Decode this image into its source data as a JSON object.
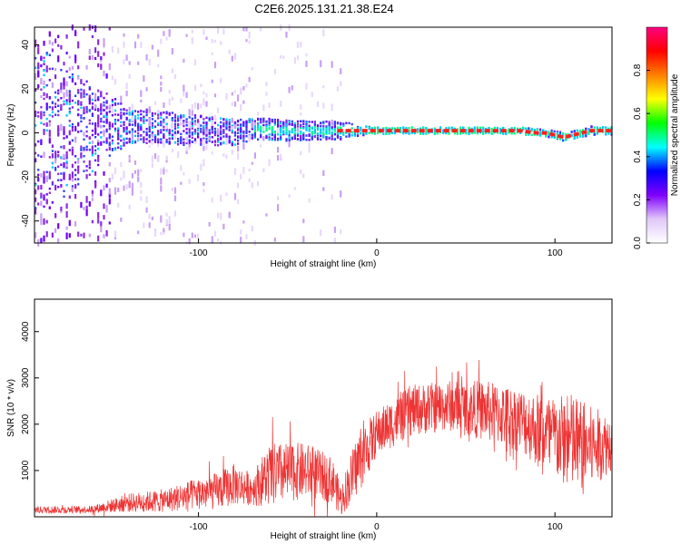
{
  "figure": {
    "title": "C2E6.2025.131.21.38.E24"
  },
  "chart_data": [
    {
      "type": "heatmap",
      "title": "C2E6.2025.131.21.38.E24",
      "xlabel": "Height of straight line (km)",
      "ylabel": "Frequency (Hz)",
      "xlim": [
        -192,
        132
      ],
      "ylim": [
        -50,
        48
      ],
      "x_ticks": [
        -100,
        0,
        100
      ],
      "y_ticks": [
        -40,
        -20,
        0,
        20,
        40
      ],
      "colorbar": {
        "label": "Normalized spectral amplitude",
        "range": [
          0,
          1
        ],
        "ticks": [
          "0.0",
          "0.2",
          "0.4",
          "0.6",
          "0.8"
        ],
        "colors": [
          "#ffffff",
          "#e0c8f8",
          "#8000ff",
          "#0000ff",
          "#00ffff",
          "#00ff00",
          "#ffff00",
          "#ff8000",
          "#ff0000",
          "#ff0080"
        ]
      },
      "dominant_frequency": {
        "x": [
          -192,
          -150,
          -130,
          -100,
          -80,
          -70,
          -50,
          -30,
          -20,
          0,
          20,
          40,
          60,
          70,
          80,
          90,
          95,
          100,
          105,
          110,
          120,
          132
        ],
        "y": [
          0,
          3,
          3,
          1,
          0,
          2,
          1,
          1,
          1,
          1,
          1,
          1,
          1,
          1,
          1,
          0,
          0,
          -1,
          -2,
          -1,
          1,
          1
        ]
      },
      "band_halfwidth_hz": {
        "x": [
          -192,
          -140,
          -100,
          -70,
          -20,
          0,
          132
        ],
        "y": [
          40,
          8,
          7,
          5,
          4,
          1,
          2
        ]
      }
    },
    {
      "type": "line",
      "xlabel": "Height of straight line (km)",
      "ylabel": "SNR (10 * v/v)",
      "xlim": [
        -192,
        132
      ],
      "ylim": [
        0,
        4700
      ],
      "x_ticks": [
        -100,
        0,
        100
      ],
      "y_ticks": [
        1000,
        2000,
        3000,
        4000
      ],
      "series_color": "#ee3333",
      "envelope": {
        "x": [
          -192,
          -160,
          -140,
          -120,
          -100,
          -90,
          -80,
          -70,
          -60,
          -40,
          -25,
          -20,
          -10,
          0,
          20,
          40,
          60,
          80,
          100,
          110,
          120,
          132
        ],
        "center": [
          150,
          160,
          300,
          350,
          500,
          550,
          700,
          600,
          900,
          1000,
          800,
          350,
          1200,
          1800,
          2300,
          2400,
          2300,
          2100,
          1700,
          1600,
          1500,
          1600
        ],
        "spread": [
          80,
          80,
          200,
          250,
          350,
          400,
          450,
          350,
          700,
          600,
          500,
          350,
          700,
          500,
          550,
          550,
          650,
          700,
          900,
          1100,
          900,
          600
        ]
      }
    }
  ]
}
